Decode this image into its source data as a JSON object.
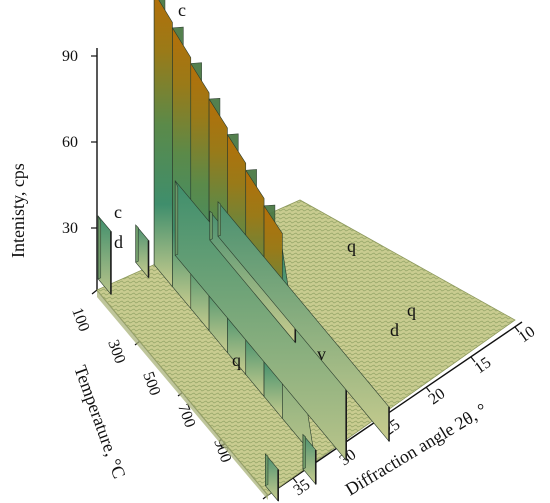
{
  "chart_data": {
    "type": "surface",
    "ylabel": "Intenisty, cps",
    "xlabel": "Diffraction angle 2θ, °",
    "zlabel": "Temperature, °C",
    "z_ticks": [
      "30",
      "60",
      "90"
    ],
    "x_ticks": [
      "10",
      "15",
      "20",
      "25",
      "30",
      "35"
    ],
    "temperature_ticks": [
      "100",
      "300",
      "500",
      "700",
      "900"
    ],
    "zlim": [
      0,
      95
    ],
    "xlim": [
      10,
      37
    ],
    "templim": [
      100,
      900
    ],
    "peaks": [
      {
        "label": "c",
        "two_theta": 29.4,
        "intensity": 95,
        "temp_range": [
          100,
          700
        ]
      },
      {
        "label": "c",
        "two_theta": 36.0,
        "intensity": 22,
        "temp_range": [
          100,
          100
        ]
      },
      {
        "label": "d",
        "two_theta": 31.0,
        "intensity": 13,
        "temp_range": [
          100,
          100
        ]
      },
      {
        "label": "q",
        "two_theta": 26.6,
        "intensity": 26,
        "temp_range": [
          100,
          900
        ]
      },
      {
        "label": "q",
        "two_theta": 20.9,
        "intensity": 12,
        "temp_range": [
          100,
          900
        ]
      },
      {
        "label": "d",
        "two_theta": 22.0,
        "intensity": 10,
        "temp_range": [
          100,
          500
        ]
      },
      {
        "label": "q",
        "two_theta": 36.5,
        "intensity": 11,
        "temp_range": [
          900,
          900
        ]
      },
      {
        "label": "v",
        "two_theta": 31.5,
        "intensity": 12,
        "temp_range": [
          900,
          900
        ]
      }
    ],
    "grid": false,
    "colormap": [
      "#c8c88a",
      "#3f8e6c",
      "#b4720a"
    ]
  }
}
